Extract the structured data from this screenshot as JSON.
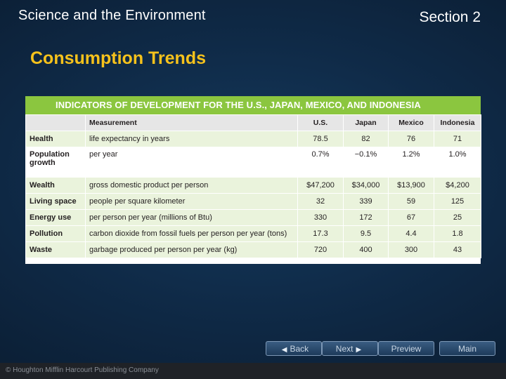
{
  "header": {
    "title": "Science and the Environment",
    "section": "Section 2"
  },
  "slide_title": "Consumption Trends",
  "table": {
    "caption": "INDICATORS OF DEVELOPMENT FOR THE U.S., JAPAN, MEXICO, AND INDONESIA",
    "columns": [
      "",
      "Measurement",
      "U.S.",
      "Japan",
      "Mexico",
      "Indonesia"
    ],
    "rows": [
      {
        "category": "Health",
        "measurement": "life expectancy in years",
        "us": "78.5",
        "japan": "82",
        "mexico": "76",
        "indonesia": "71"
      },
      {
        "category": "Population growth",
        "measurement": "per year",
        "us": "0.7%",
        "japan": "−0.1%",
        "mexico": "1.2%",
        "indonesia": "1.0%"
      },
      {
        "category": "Wealth",
        "measurement": "gross domestic product per person",
        "us": "$47,200",
        "japan": "$34,000",
        "mexico": "$13,900",
        "indonesia": "$4,200"
      },
      {
        "category": "Living space",
        "measurement": "people per square kilometer",
        "us": "32",
        "japan": "339",
        "mexico": "59",
        "indonesia": "125"
      },
      {
        "category": "Energy use",
        "measurement": "per person per year (millions of Btu)",
        "us": "330",
        "japan": "172",
        "mexico": "67",
        "indonesia": "25"
      },
      {
        "category": "Pollution",
        "measurement": "carbon dioxide from fossil fuels per person per year (tons)",
        "us": "17.3",
        "japan": "9.5",
        "mexico": "4.4",
        "indonesia": "1.8"
      },
      {
        "category": "Waste",
        "measurement": "garbage produced per person per year (kg)",
        "us": "720",
        "japan": "400",
        "mexico": "300",
        "indonesia": "43"
      }
    ]
  },
  "nav": {
    "back": "Back",
    "next": "Next",
    "preview": "Preview",
    "main": "Main"
  },
  "footer": {
    "copyright": "© Houghton Mifflin Harcourt Publishing Company"
  }
}
